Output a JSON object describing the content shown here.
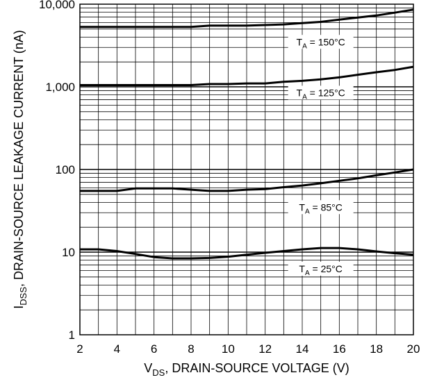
{
  "chart_data": {
    "type": "line",
    "xlabel": {
      "main": "V",
      "sub": "DS",
      "rest": ", DRAIN-SOURCE VOLTAGE (V)"
    },
    "ylabel": {
      "main": "I",
      "sub": "DSS",
      "rest": ", DRAIN-SOURCE LEAKAGE CURRENT (nA)"
    },
    "xlim": [
      2,
      20
    ],
    "ylim": [
      1,
      10000
    ],
    "yscale": "log",
    "grid": true,
    "x_ticks": [
      "2",
      "4",
      "6",
      "8",
      "10",
      "12",
      "14",
      "16",
      "18",
      "20"
    ],
    "y_ticks": [
      {
        "value": 1,
        "label": "1"
      },
      {
        "value": 10,
        "label": "10"
      },
      {
        "value": 100,
        "label": "100"
      },
      {
        "value": 1000,
        "label": "1,000"
      },
      {
        "value": 10000,
        "label": "10,000"
      }
    ],
    "series": [
      {
        "label_main": "T",
        "label_sub": "A",
        "label_rest": " = 150°C",
        "label_at": [
          15,
          3500
        ],
        "x": [
          2,
          4,
          6,
          8,
          9,
          10,
          11,
          12,
          13,
          14,
          15,
          16,
          17,
          18,
          19,
          20
        ],
        "y": [
          5300,
          5300,
          5300,
          5300,
          5500,
          5500,
          5500,
          5600,
          5700,
          5900,
          6100,
          6500,
          6900,
          7300,
          7900,
          8600
        ]
      },
      {
        "label_main": "T",
        "label_sub": "A",
        "label_rest": " = 125°C",
        "label_at": [
          15,
          850
        ],
        "x": [
          2,
          4,
          6,
          8,
          9,
          10,
          11,
          12,
          13,
          14,
          15,
          16,
          17,
          18,
          19,
          20
        ],
        "y": [
          1050,
          1050,
          1050,
          1050,
          1080,
          1080,
          1100,
          1100,
          1150,
          1180,
          1230,
          1300,
          1400,
          1500,
          1600,
          1750
        ]
      },
      {
        "label_main": "T",
        "label_sub": "A",
        "label_rest": " = 85°C",
        "label_at": [
          15,
          35
        ],
        "x": [
          2,
          3,
          4,
          5,
          6,
          7,
          8,
          9,
          10,
          11,
          12,
          13,
          14,
          15,
          16,
          17,
          18,
          19,
          20
        ],
        "y": [
          55,
          55,
          55,
          59,
          59,
          59,
          57,
          55,
          55,
          57,
          58,
          61,
          64,
          68,
          73,
          78,
          85,
          92,
          100
        ]
      },
      {
        "label_main": "T",
        "label_sub": "A",
        "label_rest": " = 25°C",
        "label_at": [
          15,
          6.3
        ],
        "x": [
          2,
          3,
          4,
          5,
          6,
          7,
          8,
          9,
          10,
          11,
          12,
          13,
          14,
          15,
          16,
          17,
          18,
          19,
          20
        ],
        "y": [
          10.8,
          10.8,
          10.3,
          9.5,
          8.7,
          8.4,
          8.4,
          8.5,
          8.8,
          9.3,
          9.8,
          10.3,
          10.8,
          11.2,
          11.2,
          10.8,
          10.2,
          9.7,
          9.3
        ]
      }
    ]
  }
}
